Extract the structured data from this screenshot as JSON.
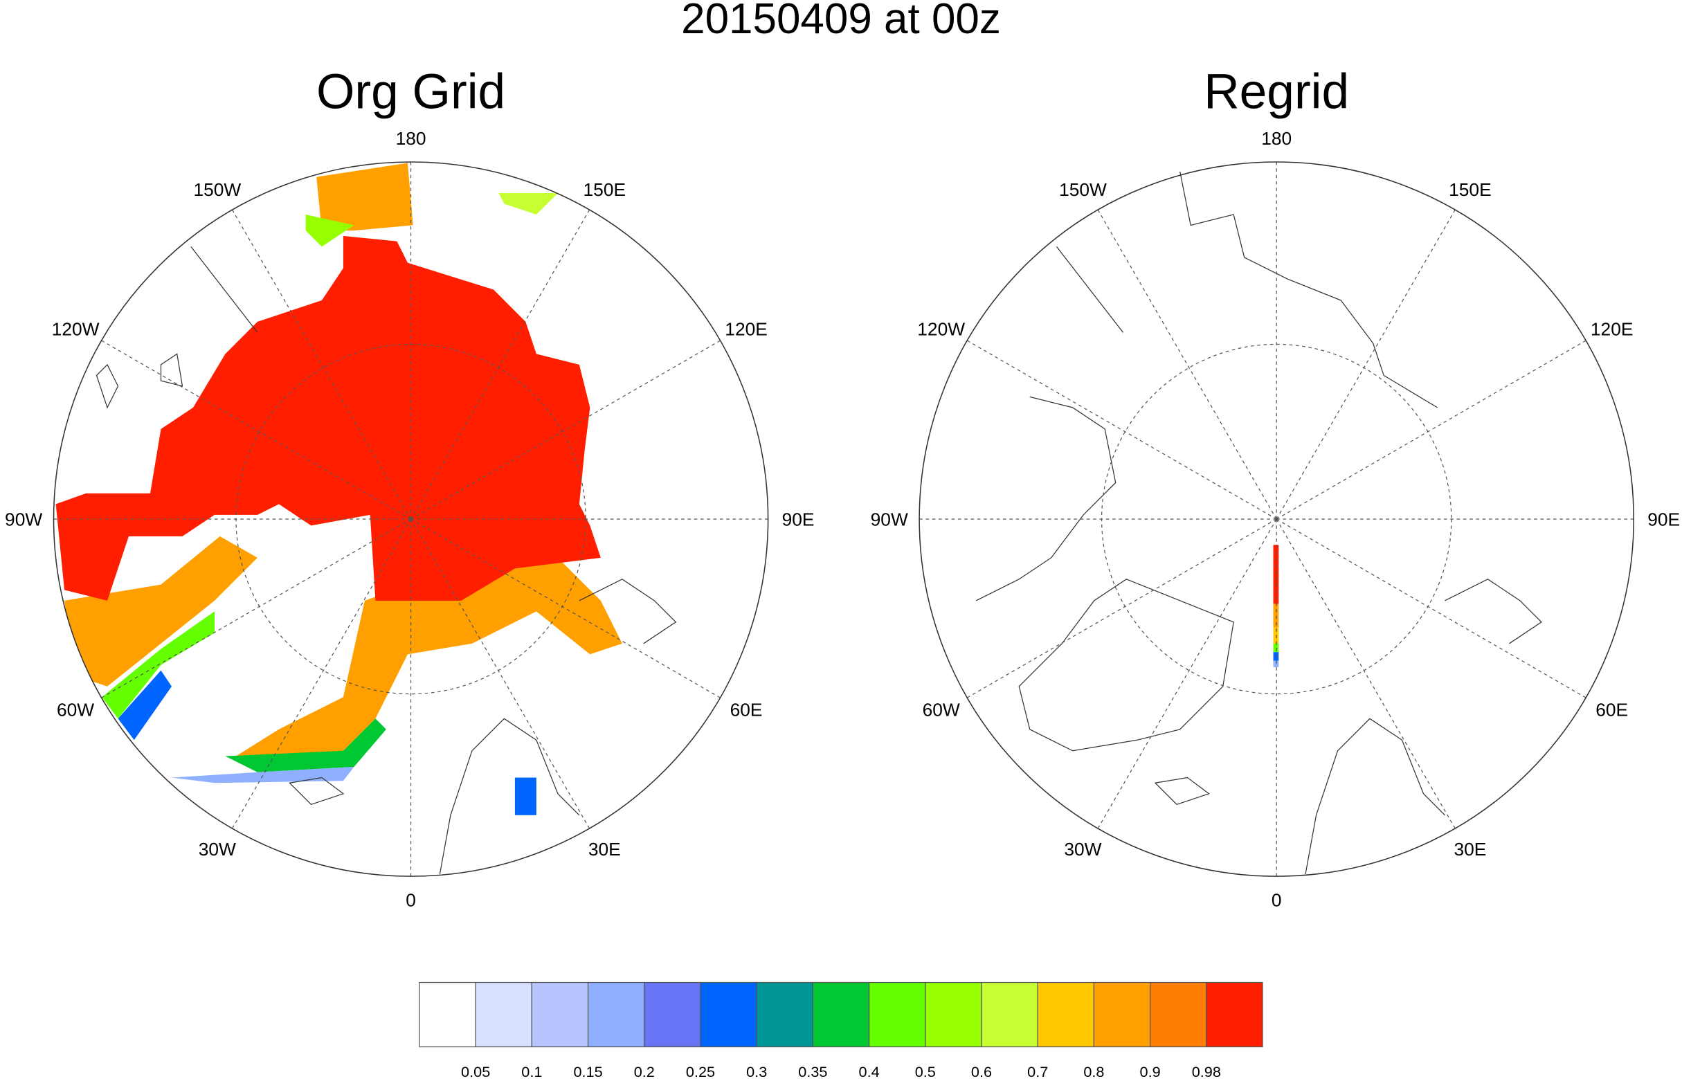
{
  "chart_data": {
    "type": "heatmap",
    "title": "20150409 at 00z",
    "projection": "north-polar-stereographic",
    "grid": true,
    "panels": [
      {
        "title": "Org Grid",
        "field": "sea-ice concentration, widespread coverage over Arctic basin"
      },
      {
        "title": "Regrid",
        "field": "only a narrow strip along 0 meridian"
      }
    ],
    "lon_labels": [
      "180",
      "150E",
      "120E",
      "90E",
      "60E",
      "30E",
      "0",
      "30W",
      "60W",
      "90W",
      "120W",
      "150W"
    ],
    "colorbar": {
      "levels": [
        "0.05",
        "0.1",
        "0.15",
        "0.2",
        "0.25",
        "0.3",
        "0.35",
        "0.4",
        "0.5",
        "0.6",
        "0.7",
        "0.8",
        "0.9",
        "0.98"
      ],
      "colors": [
        "#ffffff",
        "#d7e0ff",
        "#b6c5ff",
        "#8fb0ff",
        "#6674f5",
        "#0064ff",
        "#009696",
        "#00c832",
        "#64ff00",
        "#96ff00",
        "#c8ff32",
        "#ffc800",
        "#ffa000",
        "#ff7d00",
        "#ff1e00"
      ],
      "placement": "bottom"
    }
  }
}
